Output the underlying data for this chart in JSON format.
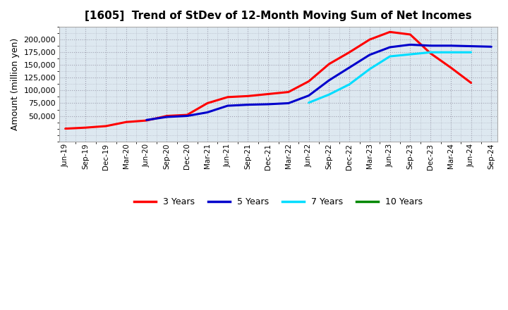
{
  "title": "[1605]  Trend of StDev of 12-Month Moving Sum of Net Incomes",
  "ylabel": "Amount (million yen)",
  "background_color": "#ffffff",
  "grid_color": "#9999aa",
  "plot_bg_color": "#dde8f0",
  "series": {
    "3 Years": {
      "color": "#ff0000",
      "data": [
        [
          "Jun-19",
          25000
        ],
        [
          "Sep-19",
          27000
        ],
        [
          "Dec-19",
          30000
        ],
        [
          "Mar-20",
          38000
        ],
        [
          "Jun-20",
          41000
        ],
        [
          "Sep-20",
          50000
        ],
        [
          "Dec-20",
          52000
        ],
        [
          "Mar-21",
          75000
        ],
        [
          "Jun-21",
          87000
        ],
        [
          "Sep-21",
          89000
        ],
        [
          "Dec-21",
          93000
        ],
        [
          "Mar-22",
          97000
        ],
        [
          "Jun-22",
          118000
        ],
        [
          "Sep-22",
          152000
        ],
        [
          "Dec-22",
          175000
        ],
        [
          "Mar-23",
          200000
        ],
        [
          "Jun-23",
          215000
        ],
        [
          "Sep-23",
          210000
        ],
        [
          "Dec-23",
          173000
        ],
        [
          "Mar-24",
          145000
        ],
        [
          "Jun-24",
          115000
        ],
        [
          "Sep-24",
          null
        ]
      ]
    },
    "5 Years": {
      "color": "#0000cc",
      "data": [
        [
          "Jun-19",
          null
        ],
        [
          "Sep-19",
          null
        ],
        [
          "Dec-19",
          null
        ],
        [
          "Mar-20",
          null
        ],
        [
          "Jun-20",
          42000
        ],
        [
          "Sep-20",
          48000
        ],
        [
          "Dec-20",
          50000
        ],
        [
          "Mar-21",
          57000
        ],
        [
          "Jun-21",
          70000
        ],
        [
          "Sep-21",
          72000
        ],
        [
          "Dec-21",
          73000
        ],
        [
          "Mar-22",
          75000
        ],
        [
          "Jun-22",
          90000
        ],
        [
          "Sep-22",
          120000
        ],
        [
          "Dec-22",
          145000
        ],
        [
          "Mar-23",
          170000
        ],
        [
          "Jun-23",
          185000
        ],
        [
          "Sep-23",
          190000
        ],
        [
          "Dec-23",
          188000
        ],
        [
          "Mar-24",
          188000
        ],
        [
          "Jun-24",
          187000
        ],
        [
          "Sep-24",
          186000
        ]
      ]
    },
    "7 Years": {
      "color": "#00ddff",
      "data": [
        [
          "Jun-19",
          null
        ],
        [
          "Sep-19",
          null
        ],
        [
          "Dec-19",
          null
        ],
        [
          "Mar-20",
          null
        ],
        [
          "Jun-20",
          null
        ],
        [
          "Sep-20",
          null
        ],
        [
          "Dec-20",
          null
        ],
        [
          "Mar-21",
          null
        ],
        [
          "Jun-21",
          null
        ],
        [
          "Sep-21",
          null
        ],
        [
          "Dec-21",
          null
        ],
        [
          "Mar-22",
          null
        ],
        [
          "Jun-22",
          76000
        ],
        [
          "Sep-22",
          92000
        ],
        [
          "Dec-22",
          112000
        ],
        [
          "Mar-23",
          142000
        ],
        [
          "Jun-23",
          167000
        ],
        [
          "Sep-23",
          171000
        ],
        [
          "Dec-23",
          175000
        ],
        [
          "Mar-24",
          175000
        ],
        [
          "Jun-24",
          175000
        ],
        [
          "Sep-24",
          null
        ]
      ]
    },
    "10 Years": {
      "color": "#008800",
      "data": [
        [
          "Jun-19",
          null
        ],
        [
          "Sep-19",
          null
        ],
        [
          "Dec-19",
          null
        ],
        [
          "Mar-20",
          null
        ],
        [
          "Jun-20",
          null
        ],
        [
          "Sep-20",
          null
        ],
        [
          "Dec-20",
          null
        ],
        [
          "Mar-21",
          null
        ],
        [
          "Jun-21",
          null
        ],
        [
          "Sep-21",
          null
        ],
        [
          "Dec-21",
          null
        ],
        [
          "Mar-22",
          null
        ],
        [
          "Jun-22",
          null
        ],
        [
          "Sep-22",
          null
        ],
        [
          "Dec-22",
          null
        ],
        [
          "Mar-23",
          null
        ],
        [
          "Jun-23",
          null
        ],
        [
          "Sep-23",
          null
        ],
        [
          "Dec-23",
          null
        ],
        [
          "Mar-24",
          null
        ],
        [
          "Jun-24",
          null
        ],
        [
          "Sep-24",
          null
        ]
      ]
    }
  },
  "x_labels": [
    "Jun-19",
    "Sep-19",
    "Dec-19",
    "Mar-20",
    "Jun-20",
    "Sep-20",
    "Dec-20",
    "Mar-21",
    "Jun-21",
    "Sep-21",
    "Dec-21",
    "Mar-22",
    "Jun-22",
    "Sep-22",
    "Dec-22",
    "Mar-23",
    "Jun-23",
    "Sep-23",
    "Dec-23",
    "Mar-24",
    "Jun-24",
    "Sep-24"
  ],
  "ylim": [
    0,
    225000
  ],
  "yticks": [
    50000,
    75000,
    100000,
    125000,
    150000,
    175000,
    200000
  ],
  "legend": [
    {
      "label": "3 Years",
      "color": "#ff0000"
    },
    {
      "label": "5 Years",
      "color": "#0000cc"
    },
    {
      "label": "7 Years",
      "color": "#00ddff"
    },
    {
      "label": "10 Years",
      "color": "#008800"
    }
  ]
}
